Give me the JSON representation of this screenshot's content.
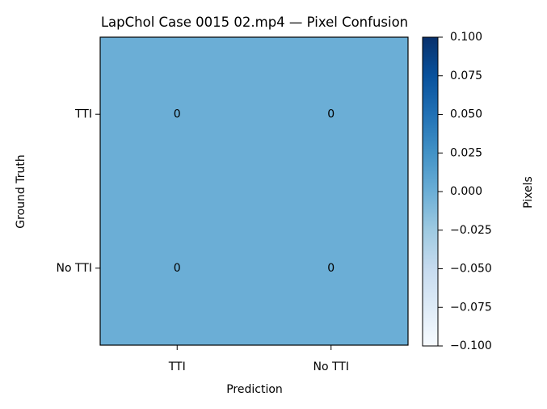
{
  "chart_data": {
    "type": "heatmap",
    "title": "LapChol Case 0015 02.mp4 — Pixel Confusion",
    "xlabel": "Prediction",
    "ylabel": "Ground Truth",
    "x_categories": [
      "TTI",
      "No TTI"
    ],
    "y_categories": [
      "TTI",
      "No TTI"
    ],
    "values": [
      [
        0,
        0
      ],
      [
        0,
        0
      ]
    ],
    "cell_labels": [
      [
        "0",
        "0"
      ],
      [
        "0",
        "0"
      ]
    ],
    "colorbar": {
      "label": "Pixels",
      "range": [
        -0.1,
        0.1
      ],
      "ticks": [
        "0.100",
        "0.075",
        "0.050",
        "0.025",
        "0.000",
        "−0.025",
        "−0.050",
        "−0.075",
        "−0.100"
      ],
      "colormap": "Blues",
      "color_low": "#f7fbff",
      "color_mid": "#6baed6",
      "color_high": "#08306b"
    },
    "cell_color": "#6baed6",
    "grid": false
  }
}
